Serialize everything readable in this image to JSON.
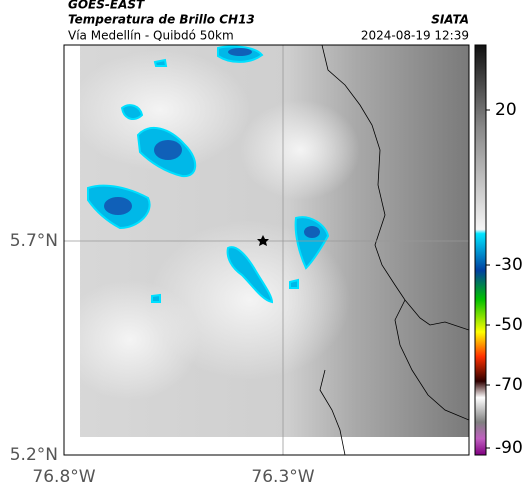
{
  "header": {
    "satellite": "GOES-EAST",
    "product": "Temperatura de Brillo CH13",
    "location": "Vía Medellín - Quibdó 50km",
    "source": "SIATA",
    "timestamp": "2024-08-19 12:39"
  },
  "map": {
    "lat_labels": [
      "5.7°N",
      "5.2°N"
    ],
    "lon_labels": [
      "76.8°W",
      "76.3°W"
    ]
  },
  "colorbar": {
    "labels": [
      "20",
      "-30",
      "-50",
      "-70",
      "-90"
    ]
  }
}
